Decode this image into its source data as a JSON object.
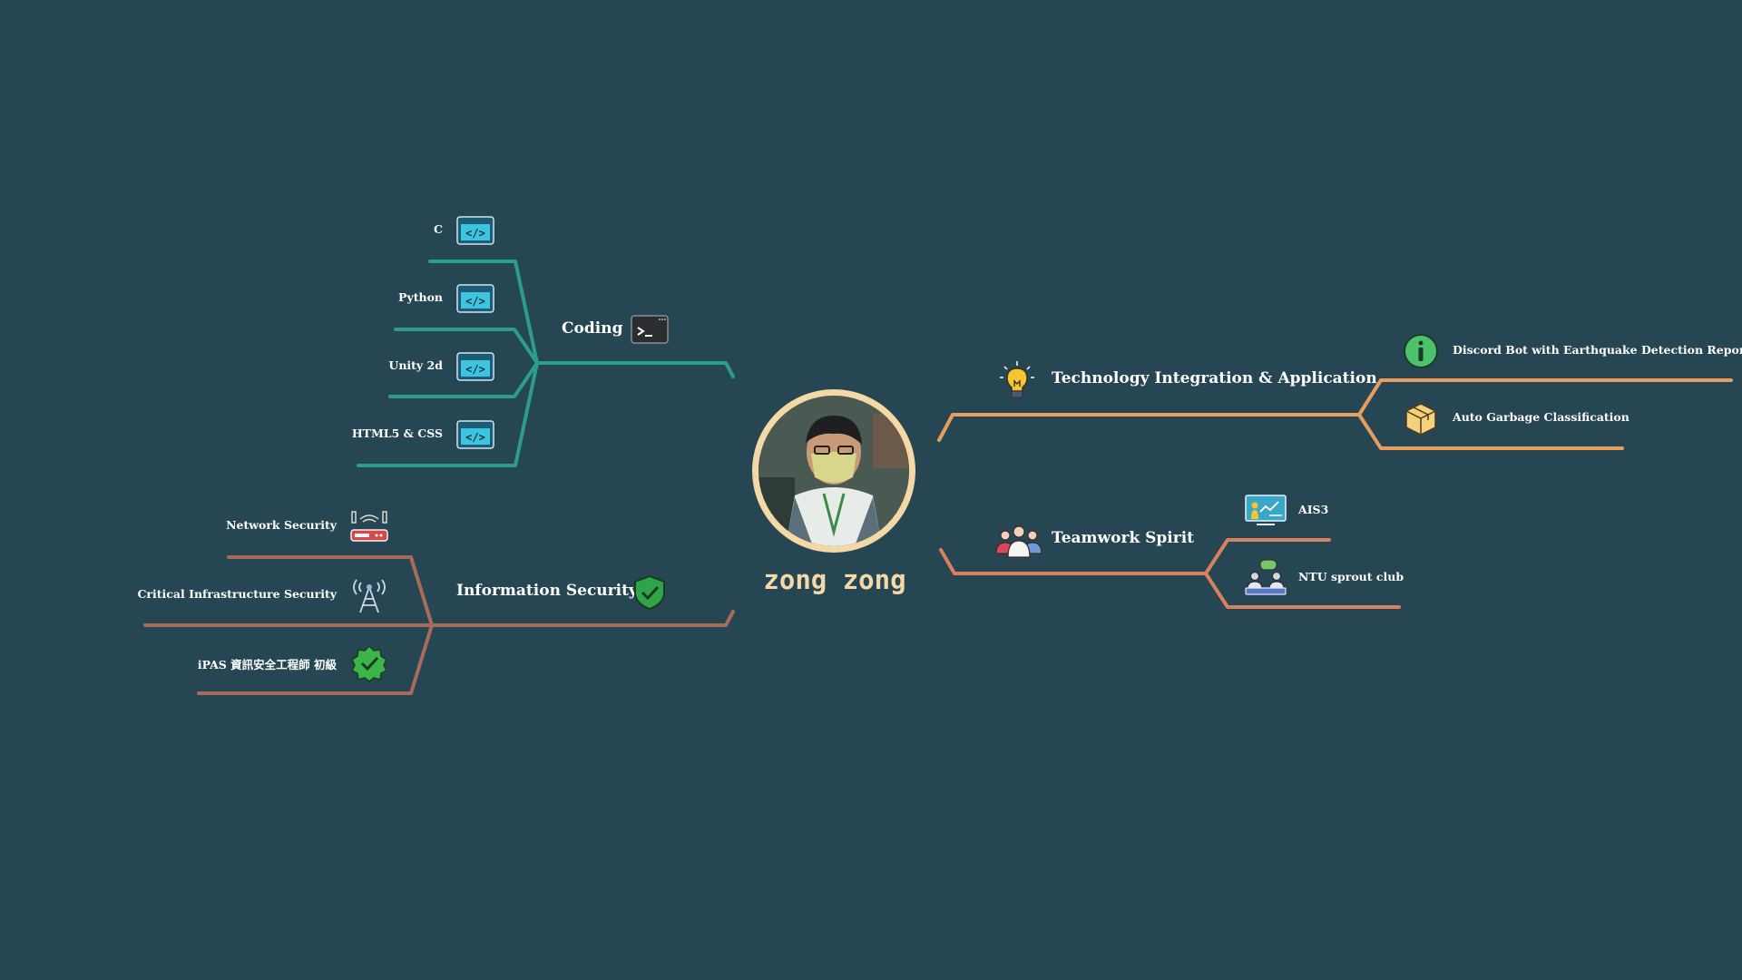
{
  "center": {
    "name": "zong zong",
    "avatar_icon": "profile-photo"
  },
  "colors": {
    "background": "#264653",
    "coding": "#2a9d8f",
    "security": "#a86b57",
    "technology": "#e79e5c",
    "teamwork": "#d9805f",
    "name": "#f4d9a7"
  },
  "branches": {
    "coding": {
      "label": "Coding",
      "icon": "terminal-icon",
      "items": [
        {
          "label": "C",
          "icon": "code-icon"
        },
        {
          "label": "Python",
          "icon": "code-icon"
        },
        {
          "label": "Unity 2d",
          "icon": "code-icon"
        },
        {
          "label": "HTML5 & CSS",
          "icon": "code-icon"
        }
      ]
    },
    "security": {
      "label": "Information Security",
      "icon": "shield-check-icon",
      "items": [
        {
          "label": "Network Security",
          "icon": "router-icon"
        },
        {
          "label": "Critical Infrastructure Security",
          "icon": "antenna-tower-icon"
        },
        {
          "label": "iPAS 資訊安全工程師 初級",
          "icon": "verified-badge-icon"
        }
      ]
    },
    "technology": {
      "label": "Technology Integration & Application",
      "icon": "lightbulb-icon",
      "items": [
        {
          "label": "Discord Bot with Earthquake Detection Report",
          "icon": "info-icon"
        },
        {
          "label": "Auto Garbage Classification",
          "icon": "box-icon"
        }
      ]
    },
    "teamwork": {
      "label": "Teamwork Spirit",
      "icon": "team-icon",
      "items": [
        {
          "label": "AIS3",
          "icon": "presentation-icon"
        },
        {
          "label": "NTU sprout club",
          "icon": "discussion-icon"
        }
      ]
    }
  }
}
